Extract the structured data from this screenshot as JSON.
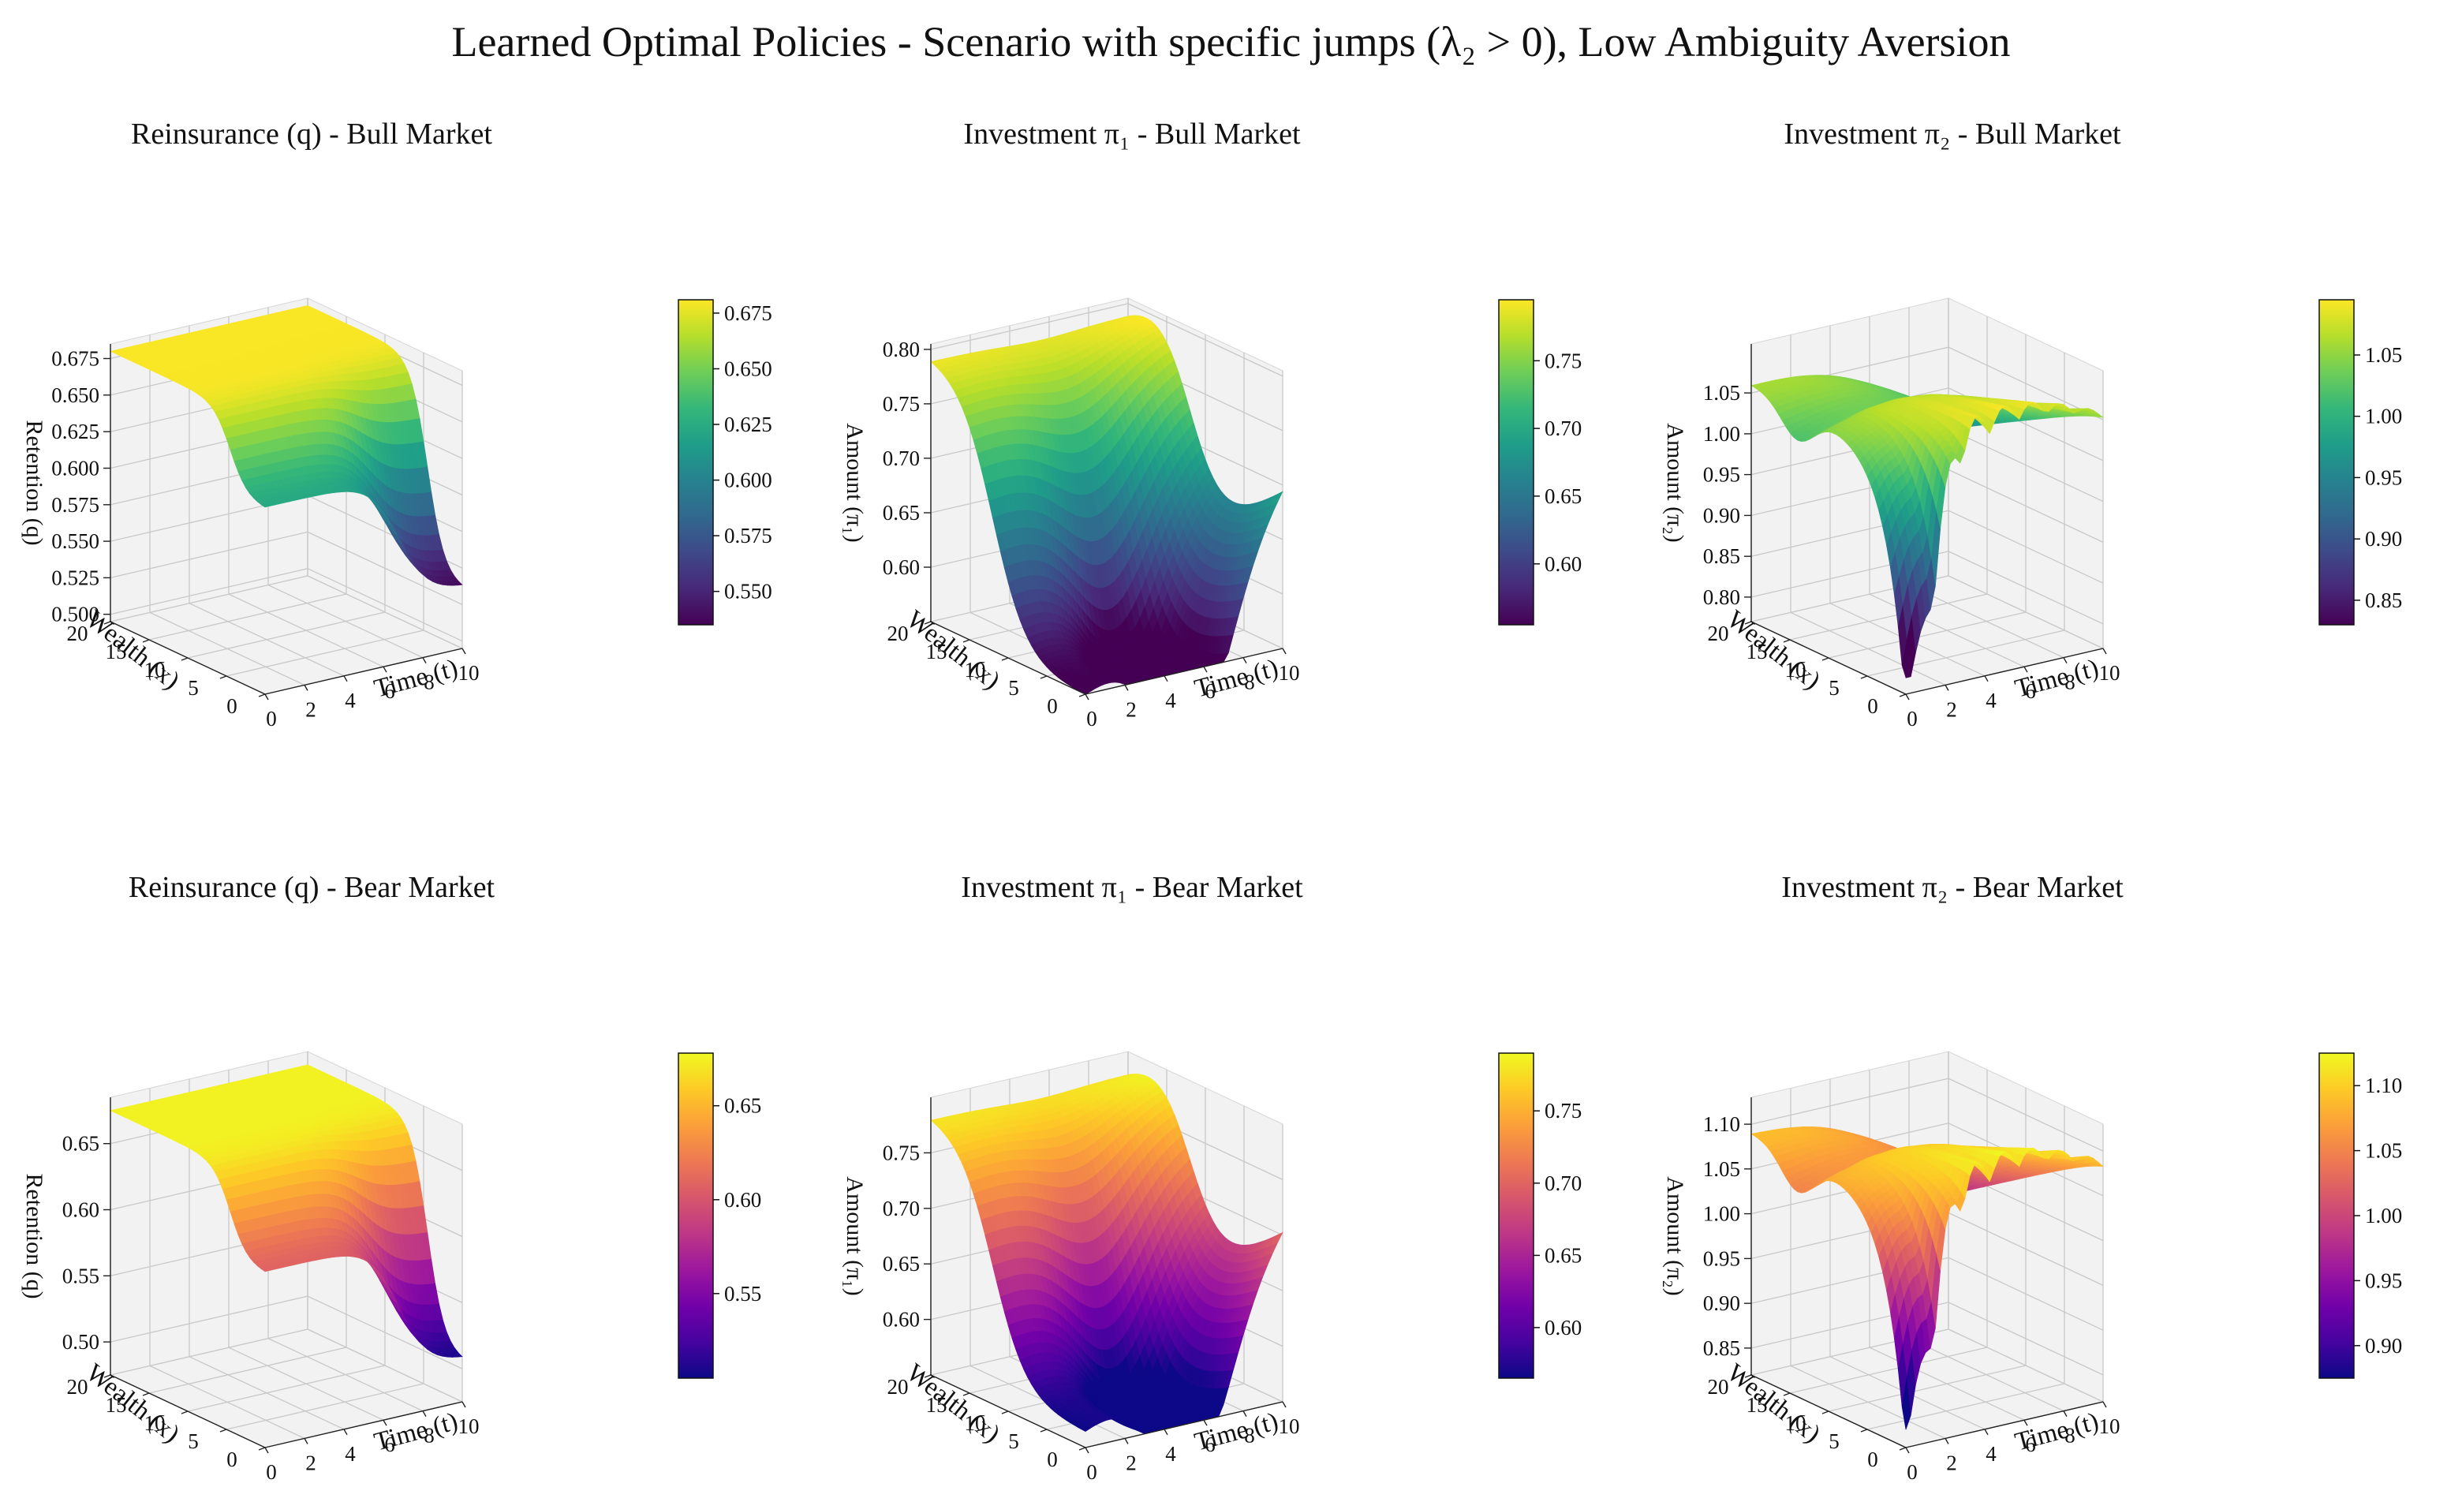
{
  "figure": {
    "title": "Learned Optimal Policies - Scenario with specific jumps (λ₂ > 0), Low Ambiguity Aversion"
  },
  "colors": {
    "viridis": [
      "#440154",
      "#482878",
      "#3e4989",
      "#31688e",
      "#26828e",
      "#1f9e89",
      "#35b779",
      "#6ece58",
      "#b5de2b",
      "#fde725"
    ],
    "plasma": [
      "#0d0887",
      "#46039f",
      "#7201a8",
      "#9c179e",
      "#bd3786",
      "#d8576b",
      "#ed7953",
      "#fb9f3a",
      "#fdca26",
      "#f0f921"
    ],
    "pane": "#f2f2f2",
    "grid": "#c8c8c8"
  },
  "chart_data": [
    {
      "id": "q_bull",
      "type": "surface",
      "title": "Reinsurance (q) - Bull Market",
      "xlabel": "Time (t)",
      "ylabel": "Wealth (x)",
      "zlabel": "Retention (q)",
      "x_ticks": [
        "0",
        "2",
        "4",
        "6",
        "8",
        "10"
      ],
      "y_ticks": [
        "0",
        "5",
        "10",
        "15",
        "20"
      ],
      "z_ticks": [
        "0.500",
        "0.525",
        "0.550",
        "0.575",
        "0.600",
        "0.625",
        "0.650",
        "0.675"
      ],
      "zlim": [
        0.495,
        0.685
      ],
      "colormap": "viridis",
      "colorbar_ticks": [
        "0.550",
        "0.575",
        "0.600",
        "0.625",
        "0.650",
        "0.675"
      ],
      "colorbar_range": [
        0.535,
        0.681
      ],
      "shape": "reinsurance",
      "params": {
        "lo": 0.535,
        "hi": 0.68
      }
    },
    {
      "id": "pi1_bull",
      "type": "surface",
      "title": "Investment π₁ - Bull Market",
      "xlabel": "Time (t)",
      "ylabel": "Wealth (x)",
      "zlabel": "Amount (π₁)",
      "x_ticks": [
        "0",
        "2",
        "4",
        "6",
        "8",
        "10"
      ],
      "y_ticks": [
        "0",
        "5",
        "10",
        "15",
        "20"
      ],
      "z_ticks": [
        "0.60",
        "0.65",
        "0.70",
        "0.75",
        "0.80"
      ],
      "zlim": [
        0.55,
        0.805
      ],
      "colormap": "viridis",
      "colorbar_ticks": [
        "0.60",
        "0.65",
        "0.70",
        "0.75"
      ],
      "colorbar_range": [
        0.555,
        0.795
      ],
      "shape": "investment1",
      "params": {
        "a": 0.55,
        "b": 0.245,
        "c": 0.11,
        "d": 0.14,
        "e": 0.2
      }
    },
    {
      "id": "pi2_bull",
      "type": "surface",
      "title": "Investment π₂ - Bull Market",
      "xlabel": "Time (t)",
      "ylabel": "Wealth (x)",
      "zlabel": "Amount (π₂)",
      "x_ticks": [
        "0",
        "2",
        "4",
        "6",
        "8",
        "10"
      ],
      "y_ticks": [
        "0",
        "5",
        "10",
        "15",
        "20"
      ],
      "z_ticks": [
        "0.80",
        "0.85",
        "0.90",
        "0.95",
        "1.00",
        "1.05"
      ],
      "zlim": [
        0.77,
        1.11
      ],
      "colormap": "viridis",
      "colorbar_ticks": [
        "0.85",
        "0.90",
        "0.95",
        "1.00",
        "1.05"
      ],
      "colorbar_range": [
        0.83,
        1.095
      ],
      "shape": "investment2",
      "params": {
        "base": 1.06,
        "bump": 0.035,
        "dip": 0.24,
        "tilt": 0.11,
        "low": 0.79
      }
    },
    {
      "id": "q_bear",
      "type": "surface",
      "title": "Reinsurance (q) - Bear Market",
      "xlabel": "Time (t)",
      "ylabel": "Wealth (x)",
      "zlabel": "Retention (q)",
      "x_ticks": [
        "0",
        "2",
        "4",
        "6",
        "8",
        "10"
      ],
      "y_ticks": [
        "0",
        "5",
        "10",
        "15",
        "20"
      ],
      "z_ticks": [
        "0.50",
        "0.55",
        "0.60",
        "0.65"
      ],
      "zlim": [
        0.475,
        0.685
      ],
      "colormap": "plasma",
      "colorbar_ticks": [
        "0.55",
        "0.60",
        "0.65"
      ],
      "colorbar_range": [
        0.505,
        0.678
      ],
      "shape": "reinsurance",
      "params": {
        "lo": 0.505,
        "hi": 0.675
      }
    },
    {
      "id": "pi1_bear",
      "type": "surface",
      "title": "Investment π₁ - Bear Market",
      "xlabel": "Time (t)",
      "ylabel": "Wealth (x)",
      "zlabel": "Amount (π₁)",
      "x_ticks": [
        "0",
        "2",
        "4",
        "6",
        "8",
        "10"
      ],
      "y_ticks": [
        "0",
        "5",
        "10",
        "15",
        "20"
      ],
      "z_ticks": [
        "0.60",
        "0.65",
        "0.70",
        "0.75"
      ],
      "zlim": [
        0.55,
        0.8
      ],
      "colormap": "plasma",
      "colorbar_ticks": [
        "0.60",
        "0.65",
        "0.70",
        "0.75"
      ],
      "colorbar_range": [
        0.565,
        0.79
      ],
      "shape": "investment1",
      "params": {
        "a": 0.565,
        "b": 0.22,
        "c": 0.105,
        "d": 0.13,
        "e": 0.19
      }
    },
    {
      "id": "pi2_bear",
      "type": "surface",
      "title": "Investment π₂ - Bear Market",
      "xlabel": "Time (t)",
      "ylabel": "Wealth (x)",
      "zlabel": "Amount (π₂)",
      "x_ticks": [
        "0",
        "2",
        "4",
        "6",
        "8",
        "10"
      ],
      "y_ticks": [
        "0",
        "5",
        "10",
        "15",
        "20"
      ],
      "z_ticks": [
        "0.85",
        "0.90",
        "0.95",
        "1.00",
        "1.05",
        "1.10"
      ],
      "zlim": [
        0.82,
        1.13
      ],
      "colormap": "plasma",
      "colorbar_ticks": [
        "0.90",
        "0.95",
        "1.00",
        "1.05",
        "1.10"
      ],
      "colorbar_range": [
        0.875,
        1.125
      ],
      "shape": "investment2",
      "params": {
        "base": 1.09,
        "bump": 0.035,
        "dip": 0.2,
        "tilt": 0.12,
        "low": 0.84
      }
    }
  ]
}
